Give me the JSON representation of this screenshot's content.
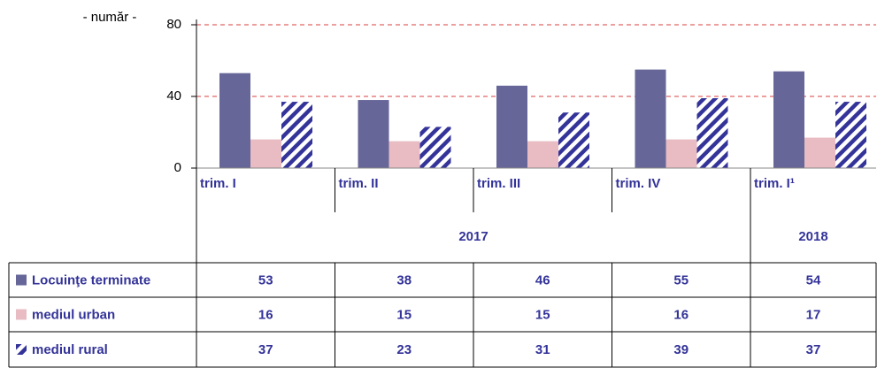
{
  "chart_data": {
    "type": "bar",
    "y_label": "- număr -",
    "categories": [
      "trim. I",
      "trim. II",
      "trim. III",
      "trim. IV",
      "trim. I¹"
    ],
    "groups": [
      {
        "label": "2017",
        "count": 4
      },
      {
        "label": "2018",
        "count": 1
      }
    ],
    "series": [
      {
        "name": "Locuinţe terminate",
        "color": "#666699",
        "values": [
          53,
          38,
          46,
          55,
          54
        ]
      },
      {
        "name": "mediul urban",
        "color": "#e8bcc2",
        "values": [
          16,
          15,
          15,
          16,
          17
        ]
      },
      {
        "name": "mediul rural",
        "color": "#333399",
        "pattern": "hatch",
        "values": [
          37,
          23,
          31,
          39,
          37
        ]
      }
    ],
    "ylim": [
      0,
      80
    ],
    "yticks": [
      0,
      40,
      80
    ],
    "grid": true
  }
}
